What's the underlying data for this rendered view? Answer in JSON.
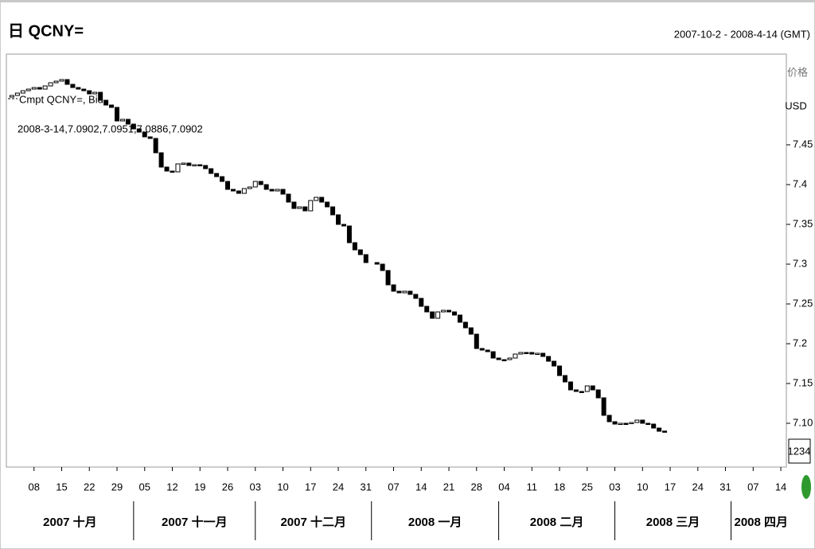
{
  "chart_data": {
    "type": "candlestick",
    "title": "日 QCNY=",
    "subtitle": "2007-10-2 - 2008-4-14 (GMT)",
    "legend": "Cmpt QCNY=, Bid",
    "annotation": "2008-3-14,7.0902,7.0951,7.0886,7.0902",
    "y_axis_label": "价格",
    "y_axis_unit": "USD",
    "corner_box": "1234",
    "color_down": "#000000",
    "color_up": "#ffffff",
    "ylim": [
      7.045,
      7.564
    ],
    "yticks": [
      7.45,
      7.4,
      7.35,
      7.3,
      7.25,
      7.2,
      7.15,
      {
        "value": 7.1,
        "label": "7.10"
      }
    ],
    "xlim": [
      "2007-10-01",
      "2008-04-15"
    ],
    "xticks": [
      {
        "value": "2007-10-08",
        "label": "08"
      },
      {
        "value": "2007-10-15",
        "label": "15"
      },
      {
        "value": "2007-10-22",
        "label": "22"
      },
      {
        "value": "2007-10-29",
        "label": "29"
      },
      {
        "value": "2007-11-05",
        "label": "05"
      },
      {
        "value": "2007-11-12",
        "label": "12"
      },
      {
        "value": "2007-11-19",
        "label": "19"
      },
      {
        "value": "2007-11-26",
        "label": "26"
      },
      {
        "value": "2007-12-03",
        "label": "03"
      },
      {
        "value": "2007-12-10",
        "label": "10"
      },
      {
        "value": "2007-12-17",
        "label": "17"
      },
      {
        "value": "2007-12-24",
        "label": "24"
      },
      {
        "value": "2007-12-31",
        "label": "31"
      },
      {
        "value": "2008-01-07",
        "label": "07"
      },
      {
        "value": "2008-01-14",
        "label": "14"
      },
      {
        "value": "2008-01-21",
        "label": "21"
      },
      {
        "value": "2008-01-28",
        "label": "28"
      },
      {
        "value": "2008-02-04",
        "label": "04"
      },
      {
        "value": "2008-02-11",
        "label": "11"
      },
      {
        "value": "2008-02-18",
        "label": "18"
      },
      {
        "value": "2008-02-25",
        "label": "25"
      },
      {
        "value": "2008-03-03",
        "label": "03"
      },
      {
        "value": "2008-03-10",
        "label": "10"
      },
      {
        "value": "2008-03-17",
        "label": "17"
      },
      {
        "value": "2008-03-24",
        "label": "24"
      },
      {
        "value": "2008-03-31",
        "label": "31"
      },
      {
        "value": "2008-04-07",
        "label": "07"
      },
      {
        "value": "2008-04-14",
        "label": "14"
      }
    ],
    "months": [
      {
        "value": "2007-10-01",
        "label": "2007 十月"
      },
      {
        "value": "2007-11-01",
        "label": "2007 十一月"
      },
      {
        "value": "2007-12-01",
        "label": "2007 十二月"
      },
      {
        "value": "2008-01-01",
        "label": "2008 一月"
      },
      {
        "value": "2008-02-01",
        "label": "2008 二月"
      },
      {
        "value": "2008-03-01",
        "label": "2008 三月"
      },
      {
        "value": "2008-04-01",
        "label": "2008 四月"
      }
    ],
    "x": [
      "2007-10-02",
      "2007-10-03",
      "2007-10-04",
      "2007-10-05",
      "2007-10-08",
      "2007-10-09",
      "2007-10-10",
      "2007-10-11",
      "2007-10-12",
      "2007-10-15",
      "2007-10-16",
      "2007-10-17",
      "2007-10-18",
      "2007-10-19",
      "2007-10-22",
      "2007-10-23",
      "2007-10-24",
      "2007-10-25",
      "2007-10-26",
      "2007-10-29",
      "2007-10-30",
      "2007-10-31",
      "2007-11-01",
      "2007-11-02",
      "2007-11-05",
      "2007-11-06",
      "2007-11-07",
      "2007-11-08",
      "2007-11-09",
      "2007-11-12",
      "2007-11-13",
      "2007-11-14",
      "2007-11-15",
      "2007-11-16",
      "2007-11-19",
      "2007-11-20",
      "2007-11-21",
      "2007-11-22",
      "2007-11-23",
      "2007-11-26",
      "2007-11-27",
      "2007-11-28",
      "2007-11-29",
      "2007-11-30",
      "2007-12-03",
      "2007-12-04",
      "2007-12-05",
      "2007-12-06",
      "2007-12-07",
      "2007-12-10",
      "2007-12-11",
      "2007-12-12",
      "2007-12-13",
      "2007-12-14",
      "2007-12-17",
      "2007-12-18",
      "2007-12-19",
      "2007-12-20",
      "2007-12-21",
      "2007-12-24",
      "2007-12-25",
      "2007-12-26",
      "2007-12-27",
      "2007-12-28",
      "2007-12-31",
      "2008-01-02",
      "2008-01-03",
      "2008-01-04",
      "2008-01-07",
      "2008-01-08",
      "2008-01-09",
      "2008-01-10",
      "2008-01-11",
      "2008-01-14",
      "2008-01-15",
      "2008-01-16",
      "2008-01-17",
      "2008-01-18",
      "2008-01-21",
      "2008-01-22",
      "2008-01-23",
      "2008-01-24",
      "2008-01-25",
      "2008-01-28",
      "2008-01-29",
      "2008-01-30",
      "2008-01-31",
      "2008-02-01",
      "2008-02-04",
      "2008-02-05",
      "2008-02-06",
      "2008-02-07",
      "2008-02-08",
      "2008-02-11",
      "2008-02-12",
      "2008-02-13",
      "2008-02-14",
      "2008-02-15",
      "2008-02-18",
      "2008-02-19",
      "2008-02-20",
      "2008-02-21",
      "2008-02-22",
      "2008-02-25",
      "2008-02-26",
      "2008-02-27",
      "2008-02-28",
      "2008-02-29",
      "2008-03-03",
      "2008-03-04",
      "2008-03-05",
      "2008-03-06",
      "2008-03-07",
      "2008-03-10",
      "2008-03-11",
      "2008-03-12",
      "2008-03-13",
      "2008-03-14"
    ],
    "open": [
      7.51,
      7.512,
      7.515,
      7.518,
      7.52,
      7.522,
      7.52,
      7.524,
      7.528,
      7.53,
      7.532,
      7.526,
      7.522,
      7.52,
      7.518,
      7.514,
      7.516,
      7.506,
      7.5,
      7.497,
      7.48,
      7.482,
      7.476,
      7.47,
      7.466,
      7.46,
      7.458,
      7.44,
      7.422,
      7.417,
      7.416,
      7.426,
      7.427,
      7.424,
      7.425,
      7.424,
      7.42,
      7.414,
      7.41,
      7.404,
      7.394,
      7.392,
      7.389,
      7.395,
      7.397,
      7.404,
      7.4,
      7.394,
      7.392,
      7.394,
      7.388,
      7.378,
      7.37,
      7.372,
      7.367,
      7.38,
      7.384,
      7.378,
      7.372,
      7.362,
      7.35,
      7.348,
      7.327,
      7.318,
      7.312,
      7.302,
      7.3,
      7.292,
      7.274,
      7.266,
      7.264,
      7.266,
      7.262,
      7.257,
      7.247,
      7.24,
      7.232,
      7.24,
      7.242,
      7.24,
      7.236,
      7.227,
      7.22,
      7.212,
      7.194,
      7.192,
      7.19,
      7.182,
      7.18,
      7.18,
      7.182,
      7.187,
      7.189,
      7.189,
      7.187,
      7.188,
      7.184,
      7.178,
      7.172,
      7.16,
      7.152,
      7.142,
      7.14,
      7.14,
      7.147,
      7.142,
      7.132,
      7.11,
      7.102,
      7.099,
      7.1,
      7.1,
      7.101,
      7.104,
      7.1,
      7.099,
      7.094,
      7.0902
    ],
    "close": [
      7.512,
      7.515,
      7.518,
      7.52,
      7.522,
      7.52,
      7.524,
      7.528,
      7.53,
      7.532,
      7.526,
      7.522,
      7.52,
      7.518,
      7.514,
      7.516,
      7.506,
      7.5,
      7.497,
      7.48,
      7.482,
      7.476,
      7.47,
      7.466,
      7.46,
      7.458,
      7.44,
      7.422,
      7.417,
      7.416,
      7.426,
      7.427,
      7.424,
      7.425,
      7.424,
      7.42,
      7.414,
      7.41,
      7.404,
      7.394,
      7.392,
      7.389,
      7.395,
      7.397,
      7.404,
      7.4,
      7.394,
      7.392,
      7.394,
      7.388,
      7.378,
      7.37,
      7.372,
      7.367,
      7.38,
      7.384,
      7.378,
      7.372,
      7.362,
      7.35,
      7.348,
      7.327,
      7.318,
      7.312,
      7.302,
      7.3,
      7.292,
      7.274,
      7.266,
      7.264,
      7.266,
      7.262,
      7.257,
      7.247,
      7.24,
      7.232,
      7.24,
      7.242,
      7.24,
      7.236,
      7.227,
      7.22,
      7.212,
      7.194,
      7.192,
      7.19,
      7.182,
      7.18,
      7.18,
      7.182,
      7.187,
      7.189,
      7.189,
      7.187,
      7.188,
      7.184,
      7.178,
      7.172,
      7.16,
      7.152,
      7.142,
      7.14,
      7.14,
      7.147,
      7.142,
      7.132,
      7.11,
      7.102,
      7.099,
      7.1,
      7.1,
      7.101,
      7.104,
      7.1,
      7.099,
      7.094,
      7.09,
      7.0902
    ]
  }
}
